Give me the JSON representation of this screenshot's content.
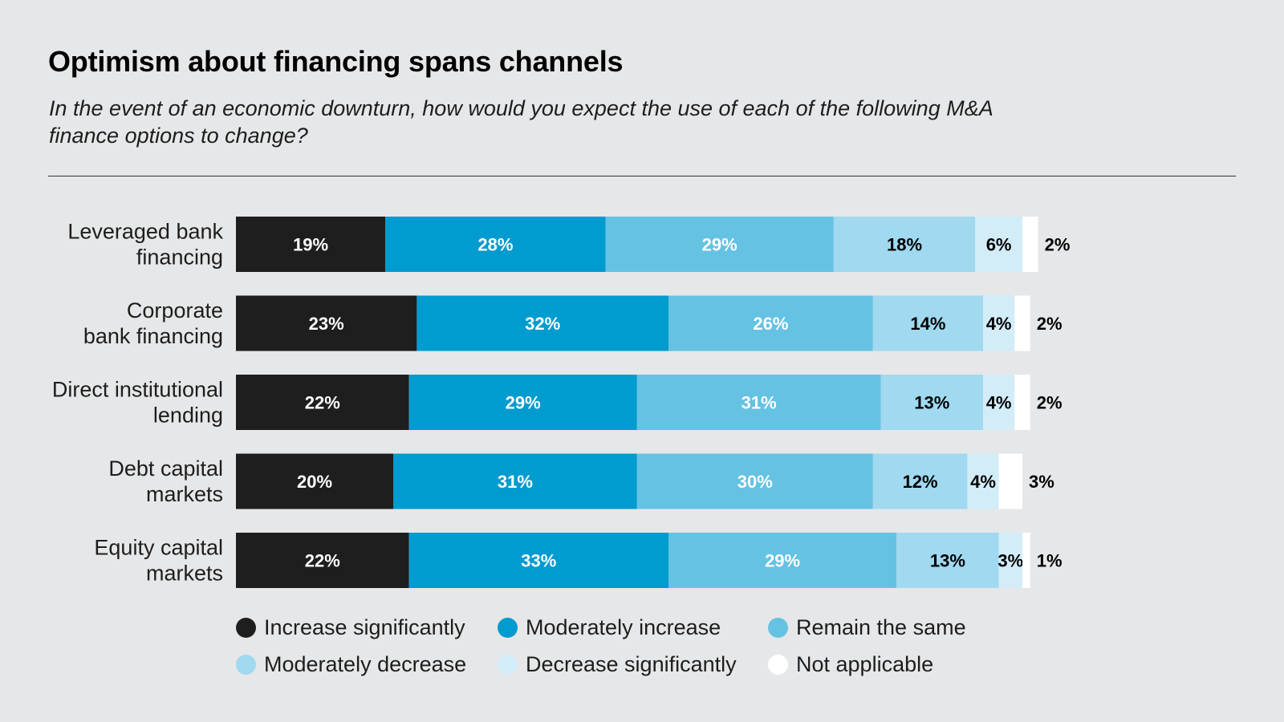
{
  "title": "Optimism about financing spans channels",
  "subtitle": "In the event of an economic downturn, how would you expect the use of each of the following M&A finance options to change?",
  "chart_data": {
    "type": "bar",
    "orientation": "horizontal",
    "stacked": true,
    "categories": [
      [
        "Leveraged bank",
        "financing"
      ],
      [
        "Corporate",
        "bank financing"
      ],
      [
        "Direct institutional",
        "lending"
      ],
      [
        "Debt capital",
        "markets"
      ],
      [
        "Equity capital",
        "markets"
      ]
    ],
    "series": [
      {
        "name": "Increase significantly",
        "color": "#1e1e1e",
        "label_color": "#ffffff",
        "values": [
          19,
          23,
          22,
          20,
          22
        ]
      },
      {
        "name": "Moderately increase",
        "color": "#009bcf",
        "label_color": "#ffffff",
        "values": [
          28,
          32,
          29,
          31,
          33
        ]
      },
      {
        "name": "Remain the same",
        "color": "#65c2e3",
        "label_color": "#ffffff",
        "values": [
          29,
          26,
          31,
          30,
          29
        ]
      },
      {
        "name": "Moderately decrease",
        "color": "#a0d9f0",
        "label_color": "#000000",
        "values": [
          18,
          14,
          13,
          12,
          13
        ]
      },
      {
        "name": "Decrease significantly",
        "color": "#d2edf8",
        "label_color": "#000000",
        "values": [
          6,
          4,
          4,
          4,
          3
        ]
      },
      {
        "name": "Not applicable",
        "color": "#ffffff",
        "label_color": "#000000",
        "values": [
          2,
          2,
          2,
          3,
          1
        ]
      }
    ],
    "value_suffix": "%",
    "xlim": [
      0,
      100
    ],
    "grid": false,
    "legend_position": "bottom"
  }
}
